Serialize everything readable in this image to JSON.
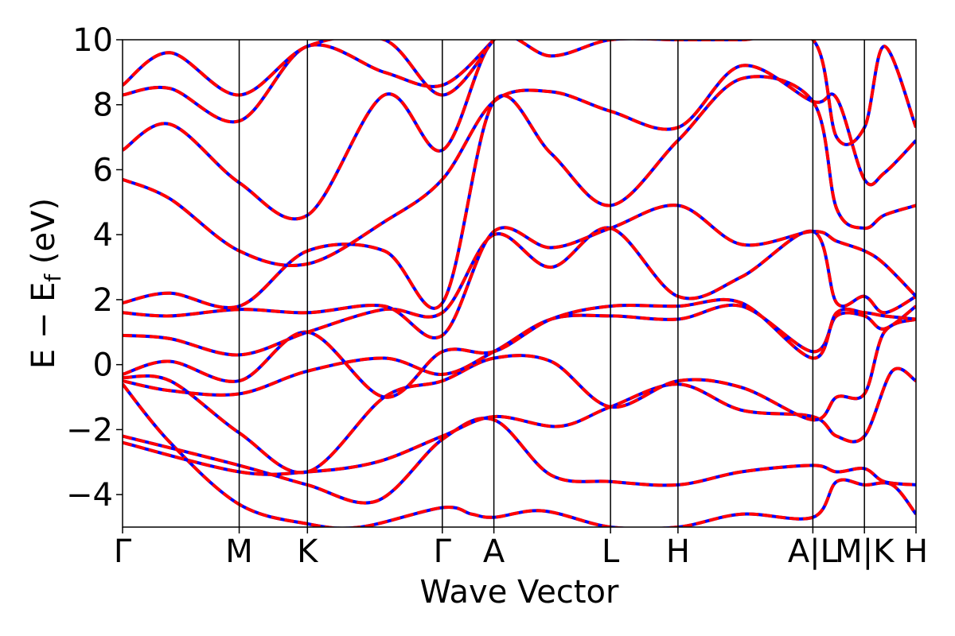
{
  "chart_data": {
    "type": "line",
    "title": "",
    "xlabel": "Wave Vector",
    "ylabel": "E − E_f (eV)",
    "ylabel_parts": {
      "main": "E − E",
      "sub": "f",
      "unit": " (eV)"
    },
    "ylim": [
      -5,
      10
    ],
    "yticks": [
      -4,
      -2,
      0,
      2,
      4,
      6,
      8,
      10
    ],
    "ytick_labels": [
      "−4",
      "−2",
      "0",
      "2",
      "4",
      "6",
      "8",
      "10"
    ],
    "xlim": [
      0,
      1
    ],
    "kpoints": [
      {
        "label": "Γ",
        "x": 0.0
      },
      {
        "label": "M",
        "x": 0.147
      },
      {
        "label": "K",
        "x": 0.233
      },
      {
        "label": "Γ",
        "x": 0.403
      },
      {
        "label": "A",
        "x": 0.468
      },
      {
        "label": "L",
        "x": 0.615
      },
      {
        "label": "H",
        "x": 0.7
      },
      {
        "label": "A|L",
        "x": 0.87
      },
      {
        "label": "M|K",
        "x": 0.935
      },
      {
        "label": "H",
        "x": 1.0
      }
    ],
    "vlines": [
      0.147,
      0.233,
      0.403,
      0.468,
      0.615,
      0.7,
      0.87,
      0.935
    ],
    "grid": false,
    "legend": "none",
    "colors": {
      "series_a": "#ff0000",
      "series_b": "#0000ff",
      "frame": "#000000"
    },
    "series": [
      {
        "bands": [
          [
            [
              0,
              -0.6
            ],
            [
              0.06,
              -2.4
            ],
            [
              0.147,
              -4.3
            ],
            [
              0.233,
              -4.9
            ],
            [
              0.3,
              -5.0
            ],
            [
              0.403,
              -4.4
            ],
            [
              0.44,
              -4.6
            ],
            [
              0.468,
              -4.7
            ],
            [
              0.53,
              -4.5
            ],
            [
              0.615,
              -5.0
            ],
            [
              0.7,
              -5.0
            ],
            [
              0.78,
              -4.6
            ],
            [
              0.87,
              -4.7
            ],
            [
              0.9,
              -3.6
            ],
            [
              0.935,
              -3.7
            ],
            [
              0.97,
              -3.7
            ],
            [
              1.0,
              -4.6
            ]
          ],
          [
            [
              0,
              -2.2
            ],
            [
              0.147,
              -3.1
            ],
            [
              0.233,
              -3.7
            ],
            [
              0.32,
              -4.2
            ],
            [
              0.403,
              -2.3
            ],
            [
              0.468,
              -1.7
            ],
            [
              0.54,
              -3.4
            ],
            [
              0.615,
              -3.6
            ],
            [
              0.7,
              -3.7
            ],
            [
              0.78,
              -3.3
            ],
            [
              0.87,
              -3.1
            ],
            [
              0.9,
              -3.3
            ],
            [
              0.935,
              -3.2
            ],
            [
              0.96,
              -3.6
            ],
            [
              1.0,
              -3.7
            ]
          ],
          [
            [
              0,
              -2.4
            ],
            [
              0.147,
              -3.3
            ],
            [
              0.233,
              -3.3
            ],
            [
              0.32,
              -3.0
            ],
            [
              0.403,
              -2.2
            ],
            [
              0.468,
              -1.6
            ],
            [
              0.55,
              -1.9
            ],
            [
              0.615,
              -1.3
            ],
            [
              0.7,
              -0.6
            ],
            [
              0.78,
              -1.4
            ],
            [
              0.87,
              -1.6
            ],
            [
              0.9,
              -2.2
            ],
            [
              0.935,
              -2.2
            ],
            [
              0.97,
              -0.2
            ],
            [
              1.0,
              -0.5
            ]
          ],
          [
            [
              0,
              -0.4
            ],
            [
              0.06,
              -0.5
            ],
            [
              0.147,
              -2.1
            ],
            [
              0.233,
              -3.3
            ],
            [
              0.33,
              -1.0
            ],
            [
              0.403,
              -0.5
            ],
            [
              0.468,
              0.2
            ],
            [
              0.54,
              0.1
            ],
            [
              0.615,
              -1.3
            ],
            [
              0.7,
              -0.5
            ],
            [
              0.78,
              -0.7
            ],
            [
              0.87,
              -1.7
            ],
            [
              0.9,
              -1.0
            ],
            [
              0.935,
              -0.9
            ],
            [
              0.96,
              1.0
            ],
            [
              1.0,
              1.4
            ]
          ],
          [
            [
              0,
              -0.5
            ],
            [
              0.06,
              -0.8
            ],
            [
              0.147,
              -0.9
            ],
            [
              0.233,
              -0.2
            ],
            [
              0.33,
              0.2
            ],
            [
              0.403,
              -0.3
            ],
            [
              0.468,
              0.4
            ],
            [
              0.54,
              1.4
            ],
            [
              0.615,
              1.5
            ],
            [
              0.7,
              1.4
            ],
            [
              0.78,
              1.8
            ],
            [
              0.87,
              0.4
            ],
            [
              0.9,
              1.5
            ],
            [
              0.935,
              1.5
            ],
            [
              0.96,
              1.1
            ],
            [
              1.0,
              1.8
            ]
          ],
          [
            [
              0,
              -0.3
            ],
            [
              0.06,
              0.1
            ],
            [
              0.147,
              -0.5
            ],
            [
              0.233,
              1.0
            ],
            [
              0.33,
              -1.0
            ],
            [
              0.403,
              0.4
            ],
            [
              0.468,
              0.4
            ],
            [
              0.54,
              1.4
            ],
            [
              0.615,
              1.8
            ],
            [
              0.7,
              1.8
            ],
            [
              0.78,
              1.9
            ],
            [
              0.87,
              0.2
            ],
            [
              0.9,
              1.6
            ],
            [
              0.935,
              1.6
            ],
            [
              0.96,
              1.5
            ],
            [
              1.0,
              1.4
            ]
          ],
          [
            [
              0,
              0.9
            ],
            [
              0.06,
              0.8
            ],
            [
              0.147,
              0.3
            ],
            [
              0.233,
              1.0
            ],
            [
              0.33,
              1.7
            ],
            [
              0.403,
              1.6
            ],
            [
              0.468,
              4.0
            ],
            [
              0.54,
              3.0
            ],
            [
              0.615,
              4.2
            ],
            [
              0.7,
              2.1
            ],
            [
              0.78,
              2.7
            ],
            [
              0.87,
              4.1
            ],
            [
              0.9,
              1.9
            ],
            [
              0.935,
              2.1
            ],
            [
              0.96,
              1.6
            ],
            [
              1.0,
              2.1
            ]
          ],
          [
            [
              0,
              1.6
            ],
            [
              0.06,
              1.5
            ],
            [
              0.147,
              1.7
            ],
            [
              0.233,
              1.6
            ],
            [
              0.33,
              1.8
            ],
            [
              0.403,
              0.9
            ],
            [
              0.468,
              4.1
            ],
            [
              0.54,
              3.6
            ],
            [
              0.615,
              4.2
            ],
            [
              0.7,
              4.9
            ],
            [
              0.78,
              3.7
            ],
            [
              0.87,
              4.1
            ],
            [
              0.9,
              3.8
            ],
            [
              0.935,
              3.5
            ],
            [
              0.96,
              3.1
            ],
            [
              1.0,
              2.1
            ]
          ],
          [
            [
              0,
              1.9
            ],
            [
              0.06,
              2.2
            ],
            [
              0.147,
              1.8
            ],
            [
              0.233,
              3.5
            ],
            [
              0.33,
              3.5
            ],
            [
              0.403,
              1.9
            ],
            [
              0.468,
              8.1
            ],
            [
              0.54,
              6.5
            ],
            [
              0.615,
              4.9
            ],
            [
              0.7,
              6.9
            ],
            [
              0.78,
              8.8
            ],
            [
              0.87,
              8.1
            ],
            [
              0.9,
              4.8
            ],
            [
              0.935,
              4.2
            ],
            [
              0.96,
              4.6
            ],
            [
              1.0,
              4.9
            ]
          ],
          [
            [
              0,
              5.7
            ],
            [
              0.06,
              5.1
            ],
            [
              0.147,
              3.5
            ],
            [
              0.233,
              3.1
            ],
            [
              0.33,
              4.4
            ],
            [
              0.403,
              5.7
            ],
            [
              0.468,
              8.1
            ],
            [
              0.54,
              8.4
            ],
            [
              0.615,
              7.8
            ],
            [
              0.7,
              7.3
            ],
            [
              0.78,
              9.2
            ],
            [
              0.87,
              8.1
            ],
            [
              0.9,
              8.2
            ],
            [
              0.935,
              5.7
            ],
            [
              0.96,
              5.9
            ],
            [
              1.0,
              6.9
            ]
          ],
          [
            [
              0,
              6.6
            ],
            [
              0.06,
              7.4
            ],
            [
              0.147,
              5.6
            ],
            [
              0.233,
              4.6
            ],
            [
              0.33,
              8.3
            ],
            [
              0.403,
              6.6
            ],
            [
              0.468,
              10.0
            ],
            [
              0.54,
              9.5
            ],
            [
              0.615,
              10.0
            ],
            [
              0.7,
              10.0
            ],
            [
              0.78,
              10.0
            ],
            [
              0.87,
              10.0
            ],
            [
              0.9,
              7.0
            ],
            [
              0.935,
              7.3
            ],
            [
              0.96,
              9.8
            ],
            [
              1.0,
              7.3
            ]
          ],
          [
            [
              0,
              8.3
            ],
            [
              0.06,
              8.5
            ],
            [
              0.147,
              7.5
            ],
            [
              0.233,
              9.8
            ],
            [
              0.33,
              9.0
            ],
            [
              0.403,
              8.6
            ],
            [
              0.468,
              10.0
            ]
          ],
          [
            [
              0,
              8.6
            ],
            [
              0.06,
              9.6
            ],
            [
              0.147,
              8.3
            ],
            [
              0.233,
              9.8
            ],
            [
              0.33,
              10.0
            ],
            [
              0.403,
              8.3
            ],
            [
              0.468,
              10.0
            ]
          ]
        ]
      }
    ]
  }
}
